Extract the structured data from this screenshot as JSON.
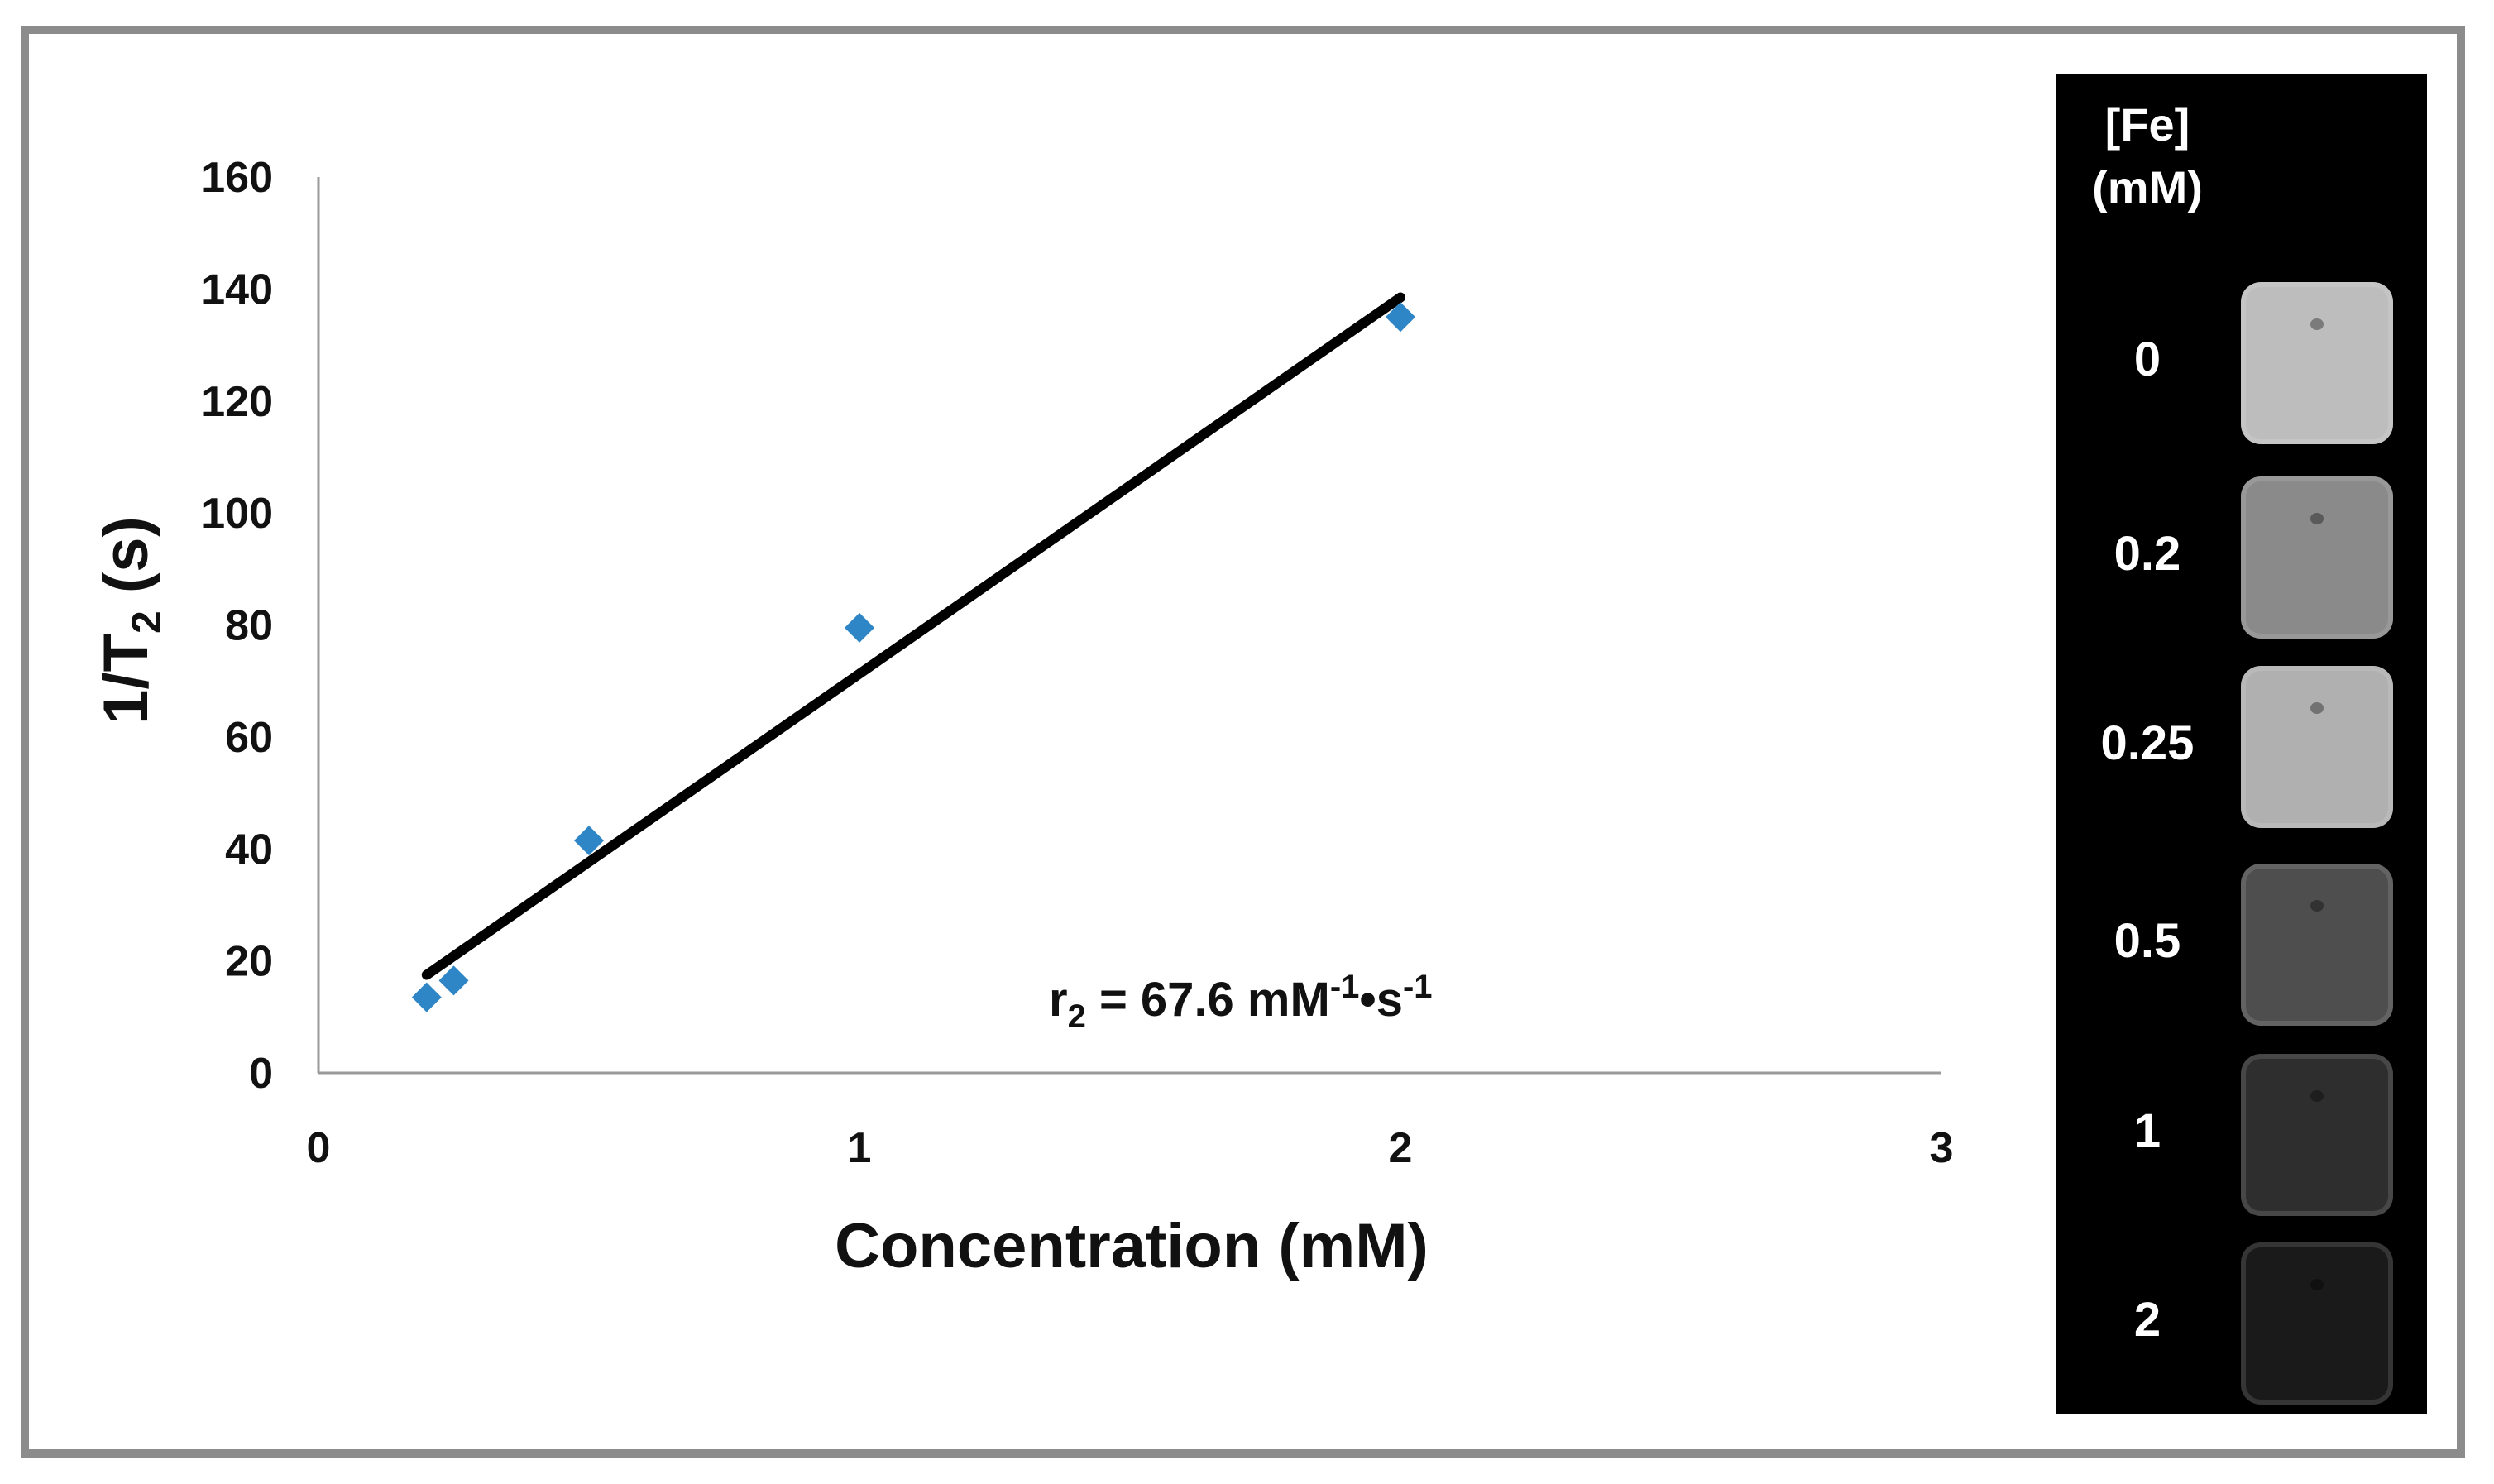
{
  "chart_data": {
    "type": "scatter",
    "xlabel": "Concentration (mM)",
    "ylabel_parts": {
      "pre": "1/T",
      "sub": "2",
      "post": " (s)"
    },
    "xlim": [
      0,
      3
    ],
    "ylim": [
      0,
      160
    ],
    "x_ticks": [
      "0",
      "1",
      "2",
      "3"
    ],
    "y_ticks": [
      "0",
      "20",
      "40",
      "60",
      "80",
      "100",
      "120",
      "140",
      "160"
    ],
    "grid": false,
    "legend": "none",
    "series": [
      {
        "marker": "diamond",
        "color": "#2f86c6",
        "points": [
          {
            "x": 0.2,
            "y": 13.5
          },
          {
            "x": 0.25,
            "y": 16.5
          },
          {
            "x": 0.5,
            "y": 41.5
          },
          {
            "x": 1.0,
            "y": 79.5
          },
          {
            "x": 2.0,
            "y": 135
          }
        ]
      }
    ],
    "fit_line": {
      "color": "#000000",
      "x": [
        0.2,
        2.0
      ],
      "y": [
        17.5,
        138.5
      ]
    },
    "annotation": {
      "pre": "r",
      "sub": "2",
      "mid": " = 67.6 mM",
      "sup1": "-1",
      "dot": "•s",
      "sup2": "-1"
    }
  },
  "inset": {
    "title_line1": "[Fe]",
    "title_line2": "(mM)",
    "samples": [
      {
        "label": "0",
        "shade": "#bdbdbd"
      },
      {
        "label": "0.2",
        "shade": "#8a8a8a"
      },
      {
        "label": "0.25",
        "shade": "#b0b0b0"
      },
      {
        "label": "0.5",
        "shade": "#4e4e4e"
      },
      {
        "label": "1",
        "shade": "#2e2e2e"
      },
      {
        "label": "2",
        "shade": "#1a1a1a"
      }
    ]
  }
}
